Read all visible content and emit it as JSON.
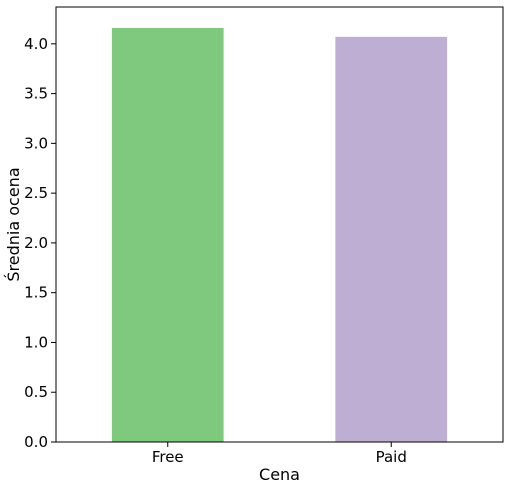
{
  "chart_data": {
    "type": "bar",
    "categories": [
      "Free",
      "Paid"
    ],
    "values": [
      4.16,
      4.07
    ],
    "colors": [
      "#7fc97f",
      "#beaed4"
    ],
    "xlabel": "Cena",
    "ylabel": "Średnia ocena",
    "ylim": [
      0,
      4.37
    ],
    "yticks": [
      0.0,
      0.5,
      1.0,
      1.5,
      2.0,
      2.5,
      3.0,
      3.5,
      4.0
    ],
    "ytick_labels": [
      "0.0",
      "0.5",
      "1.0",
      "1.5",
      "2.0",
      "2.5",
      "3.0",
      "3.5",
      "4.0"
    ],
    "grid": false,
    "legend": "none"
  }
}
